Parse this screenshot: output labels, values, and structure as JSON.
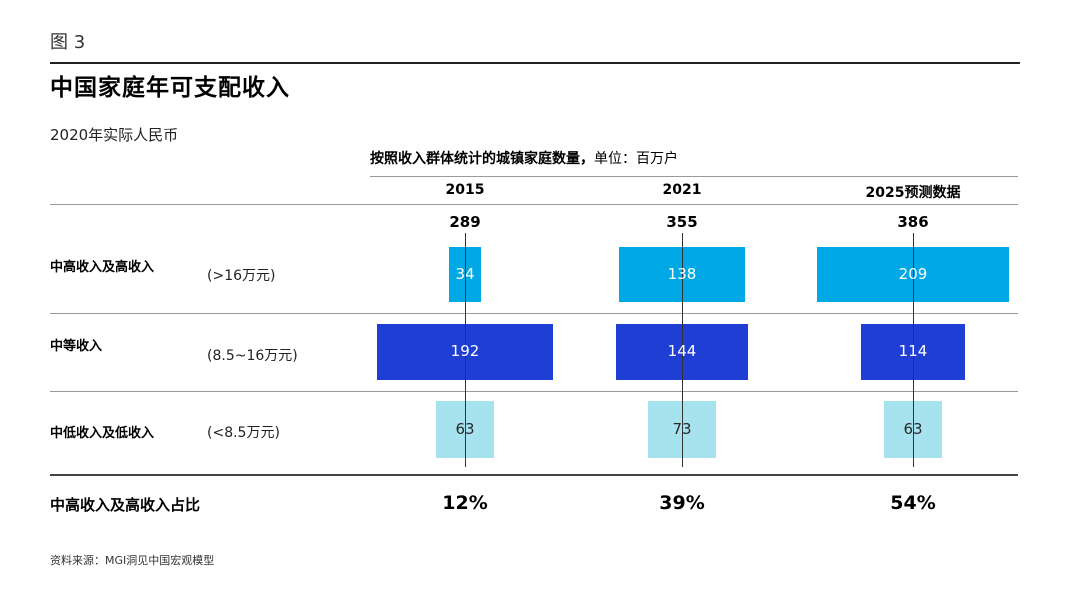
{
  "figure_label": "图 3",
  "chart_data": {
    "type": "bar",
    "title": "中国家庭年可支配收入",
    "unit_note": "2020年实际人民币",
    "subtitle_bold": "按照收入群体统计的城镇家庭数量，",
    "subtitle_unit": "单位：百万户",
    "categories": [
      "2015",
      "2021",
      "2025预测数据"
    ],
    "totals": [
      "289",
      "355",
      "386"
    ],
    "series": [
      {
        "name": "中高收入及高收入",
        "range": "(>16万元)",
        "values": [
          34,
          138,
          209
        ],
        "color": "#00A9E6"
      },
      {
        "name": "中等收入",
        "range": "(8.5~16万元)",
        "values": [
          192,
          144,
          114
        ],
        "color": "#1F3FD4"
      },
      {
        "name": "中低收入及低收入",
        "range": "(<8.5万元)",
        "values": [
          63,
          73,
          63
        ],
        "color": "#A6E3EE"
      }
    ],
    "share_label": "中高收入及高收入占比",
    "shares": [
      "12%",
      "39%",
      "54%"
    ]
  },
  "source": "资料来源：MGI洞见中国宏观模型"
}
